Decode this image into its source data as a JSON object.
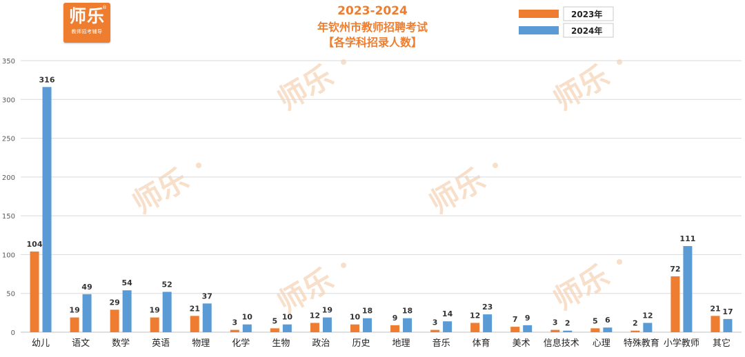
{
  "logo": {
    "main_text": "师乐",
    "sub_text": "教师招考辅导",
    "reg_mark": "®"
  },
  "watermark_text": "师乐",
  "title_lines": [
    "2023-2024",
    "年钦州市教师招聘考试",
    "【各学科招录人数】"
  ],
  "colors": {
    "series_2023": "#ee7d31",
    "series_2024": "#5b9bd5",
    "title": "#ee7d2f",
    "grid": "#d9d9d9",
    "watermark": "#f4c9a6"
  },
  "chart_data": {
    "type": "bar",
    "legend_position": "top-right",
    "grid": true,
    "ylim": [
      0,
      350
    ],
    "yticks": [
      0,
      50,
      100,
      150,
      200,
      250,
      300,
      350
    ],
    "categories": [
      "幼儿",
      "语文",
      "数学",
      "英语",
      "物理",
      "化学",
      "生物",
      "政治",
      "历史",
      "地理",
      "音乐",
      "体育",
      "美术",
      "信息技术",
      "心理",
      "特殊教育",
      "小学教师",
      "其它"
    ],
    "series": [
      {
        "name": "2023年",
        "values": [
          104,
          19,
          29,
          19,
          21,
          3,
          5,
          12,
          10,
          9,
          3,
          12,
          7,
          3,
          5,
          2,
          72,
          21
        ]
      },
      {
        "name": "2024年",
        "values": [
          316,
          49,
          54,
          52,
          37,
          10,
          10,
          19,
          18,
          18,
          14,
          23,
          9,
          2,
          6,
          12,
          111,
          17
        ]
      }
    ]
  }
}
